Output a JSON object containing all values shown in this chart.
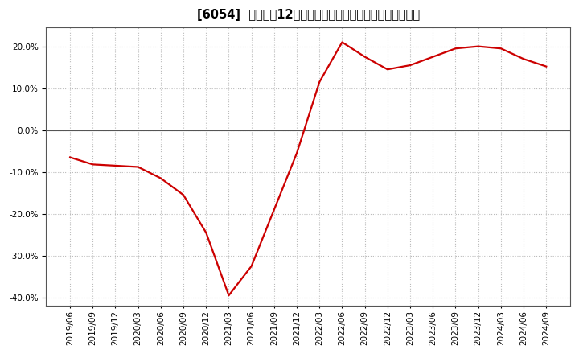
{
  "title": "[6054]  売上高の12か月移動合計の対前年同期増減率の推移",
  "dates": [
    "2019/06",
    "2019/09",
    "2019/12",
    "2020/03",
    "2020/06",
    "2020/09",
    "2020/12",
    "2021/03",
    "2021/06",
    "2021/09",
    "2021/12",
    "2022/03",
    "2022/06",
    "2022/09",
    "2022/12",
    "2023/03",
    "2023/06",
    "2023/09",
    "2023/12",
    "2024/03",
    "2024/06",
    "2024/09"
  ],
  "values": [
    -0.065,
    -0.082,
    -0.085,
    -0.088,
    -0.115,
    -0.155,
    -0.245,
    -0.395,
    -0.325,
    -0.19,
    -0.055,
    0.115,
    0.21,
    0.175,
    0.145,
    0.155,
    0.175,
    0.195,
    0.2,
    0.195,
    0.17,
    0.152
  ],
  "line_color": "#cc0000",
  "background_color": "#ffffff",
  "plot_bg_color": "#ffffff",
  "ylim": [
    -0.42,
    0.245
  ],
  "yticks": [
    -0.4,
    -0.3,
    -0.2,
    -0.1,
    0.0,
    0.1,
    0.2
  ],
  "grid_color": "#bbbbbb",
  "title_fontsize": 10.5,
  "tick_fontsize": 7.5,
  "line_width": 1.6
}
